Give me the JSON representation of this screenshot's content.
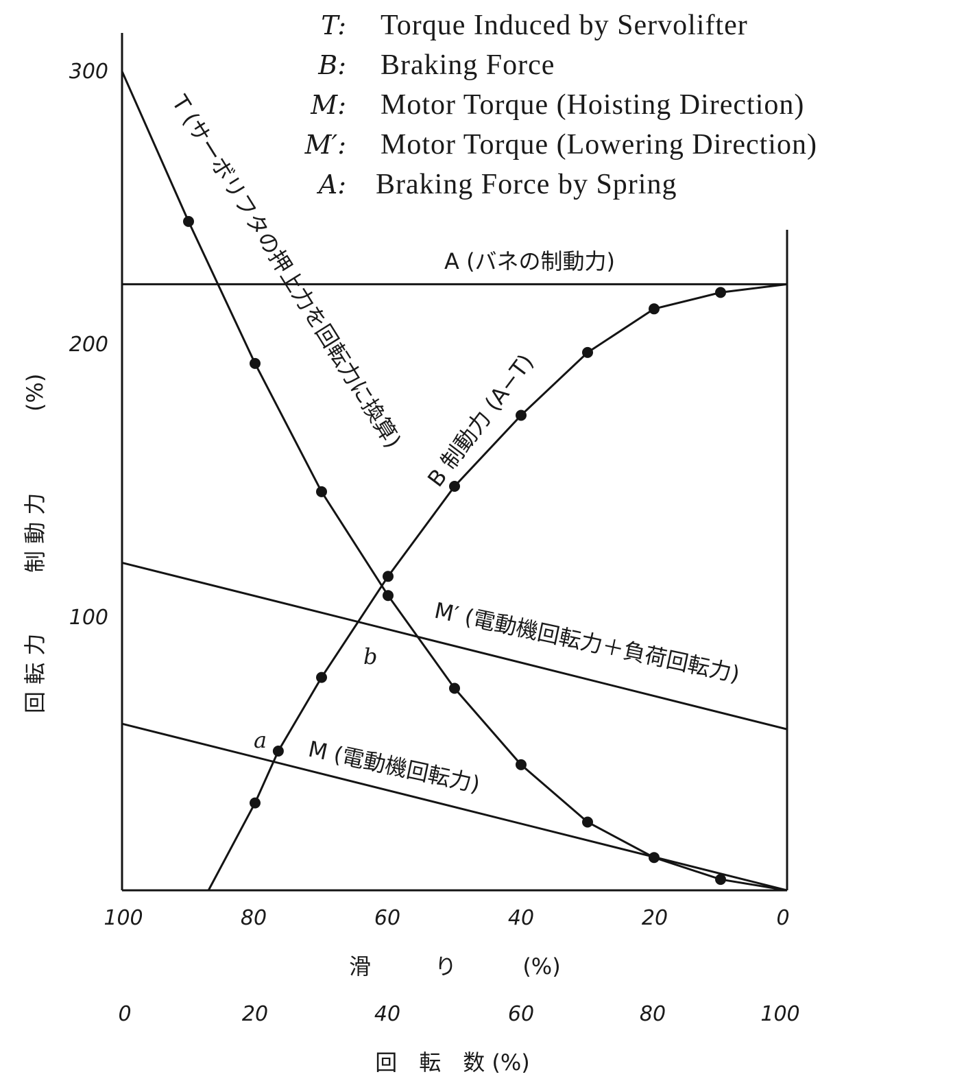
{
  "legend": [
    {
      "key": "T:",
      "text": "Torque Induced by Servolifter"
    },
    {
      "key": "B:",
      "text": "Braking Force"
    },
    {
      "key": "M:",
      "text": "Motor Torque (Hoisting Direction)"
    },
    {
      "key": "M′:",
      "text": "Motor Torque (Lowering Direction)"
    },
    {
      "key": "A:",
      "text": "Braking Force by Spring"
    }
  ],
  "chart_data": {
    "type": "line",
    "ylabel_parts": [
      "回 転 力",
      "制 動 力",
      "(%)"
    ],
    "xlabel_slip_parts": [
      "滑",
      "り",
      "(%)"
    ],
    "xlabel_speed": "回　転　数 (%)",
    "x_slip_ticks": [
      "100",
      "80",
      "60",
      "40",
      "20",
      "0"
    ],
    "x_speed_ticks": [
      "0",
      "20",
      "40",
      "60",
      "80",
      "100"
    ],
    "y_ticks": [
      "100",
      "200",
      "300"
    ],
    "xlim_slip": [
      100,
      0
    ],
    "ylim": [
      0,
      300
    ],
    "grid": false,
    "series": [
      {
        "key": "T",
        "name": "T (サーボリフタの押上力を回転力に換算)",
        "markers": true,
        "x_slip": [
          100,
          90,
          80,
          70,
          60,
          50,
          40,
          30,
          20,
          10,
          0
        ],
        "y": [
          300,
          245,
          193,
          146,
          108,
          74,
          46,
          25,
          12,
          4,
          0
        ]
      },
      {
        "key": "B",
        "name": "B 制動力 (A−T)",
        "markers": true,
        "x_slip": [
          87,
          80,
          76.5,
          70,
          60,
          50,
          40,
          30,
          20,
          10,
          0
        ],
        "y": [
          0,
          32,
          51,
          78,
          115,
          148,
          174,
          197,
          213,
          219,
          222
        ]
      },
      {
        "key": "A",
        "name": "A (バネの制動力)",
        "markers": false,
        "x_slip": [
          100,
          0
        ],
        "y": [
          222,
          222
        ]
      },
      {
        "key": "M'",
        "name": "M′ (電動機回転力＋負荷回転力)",
        "markers": false,
        "x_slip": [
          100,
          0
        ],
        "y": [
          120,
          59
        ]
      },
      {
        "key": "M",
        "name": "M (電動機回転力)",
        "markers": false,
        "x_slip": [
          100,
          0
        ],
        "y": [
          61,
          0
        ]
      }
    ],
    "point_labels": [
      {
        "text": "a",
        "x_slip": 80.5,
        "y": 53
      },
      {
        "text": "b",
        "x_slip": 62.5,
        "y": 81
      }
    ]
  }
}
